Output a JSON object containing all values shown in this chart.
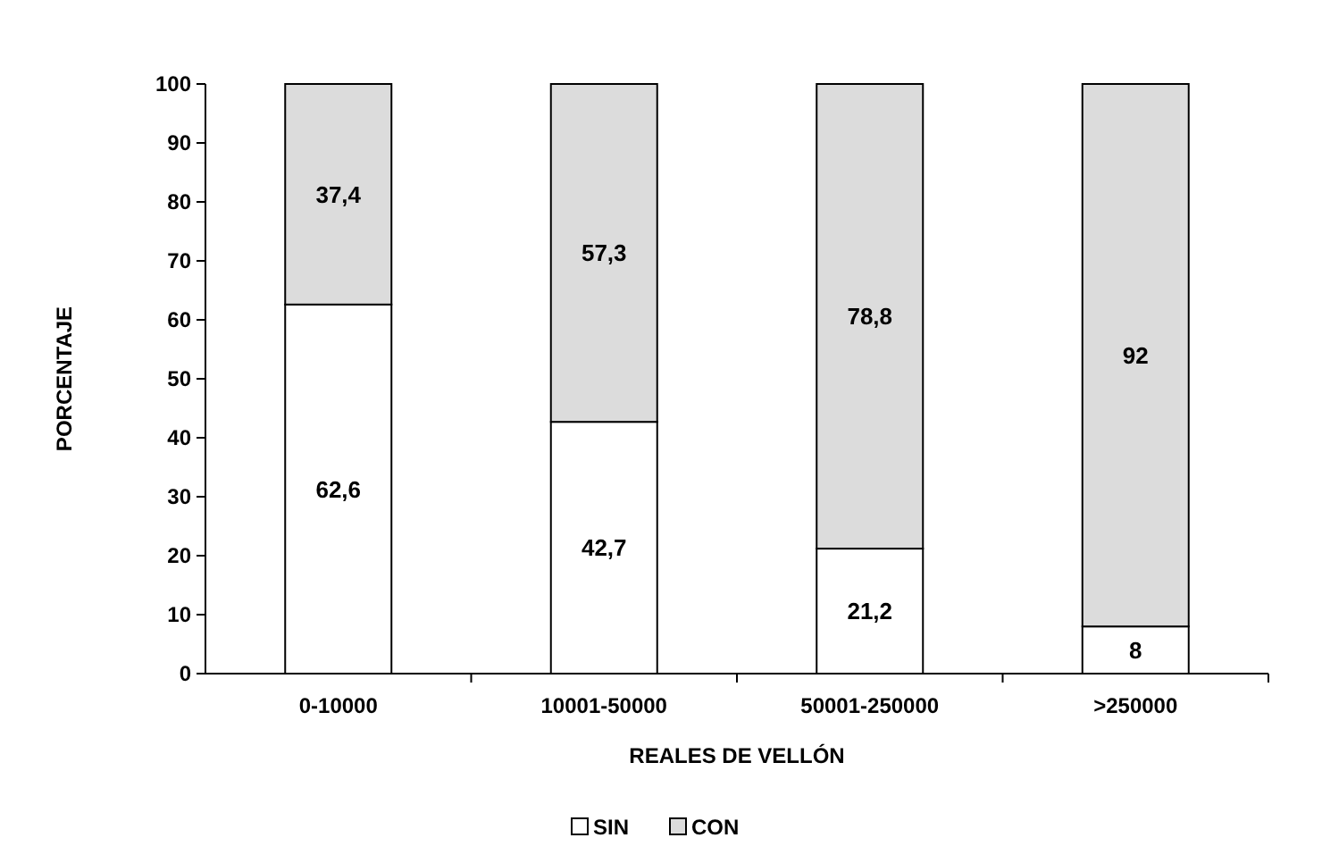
{
  "chart_data": {
    "type": "bar",
    "stacked": true,
    "xlabel": "REALES DE VELLÓN",
    "ylabel": "PORCENTAJE",
    "categories": [
      "0-10000",
      "10001-50000",
      "50001-250000",
      ">250000"
    ],
    "series": [
      {
        "name": "SIN",
        "color": "#ffffff",
        "values": [
          62.6,
          42.7,
          21.2,
          8
        ],
        "value_labels": [
          "62,6",
          "42,7",
          "21,2",
          "8"
        ]
      },
      {
        "name": "CON",
        "color": "#dcdcdc",
        "values": [
          37.4,
          57.3,
          78.8,
          92
        ],
        "value_labels": [
          "37,4",
          "57,3",
          "78,8",
          "92"
        ]
      }
    ],
    "ylim": [
      0,
      100
    ],
    "yticks": [
      0,
      10,
      20,
      30,
      40,
      50,
      60,
      70,
      80,
      90,
      100
    ],
    "legend": "bottom"
  }
}
